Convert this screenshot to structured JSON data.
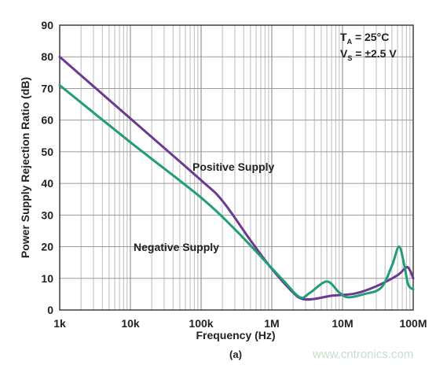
{
  "chart_data": {
    "type": "line",
    "title": "",
    "xlabel": "Frequency (Hz)",
    "ylabel": "Power Supply Rejection Ratio (dB)",
    "xscale": "log",
    "xlim": [
      1000,
      100000000
    ],
    "ylim": [
      0,
      90
    ],
    "x_ticks": [
      {
        "value": 1000,
        "label": "1k"
      },
      {
        "value": 10000,
        "label": "10k"
      },
      {
        "value": 100000,
        "label": "100k"
      },
      {
        "value": 1000000,
        "label": "1M"
      },
      {
        "value": 10000000,
        "label": "10M"
      },
      {
        "value": 100000000,
        "label": "100M"
      }
    ],
    "y_ticks": [
      0,
      10,
      20,
      30,
      40,
      50,
      60,
      70,
      80,
      90
    ],
    "grid": true,
    "conditions": {
      "line1": {
        "main": "T",
        "sub": "A",
        "rest": " = 25°C"
      },
      "line2": {
        "main": "V",
        "sub": "S",
        "rest": " = ±2.5 V"
      }
    },
    "series": [
      {
        "name": "Positive Supply",
        "color": "#6a3a8f",
        "points": [
          [
            1000,
            80
          ],
          [
            10000,
            60.5
          ],
          [
            100000,
            41
          ],
          [
            200000,
            34.5
          ],
          [
            500000,
            22
          ],
          [
            1000000,
            13
          ],
          [
            2000000,
            5.5
          ],
          [
            2700000,
            3.5
          ],
          [
            4000000,
            3.5
          ],
          [
            7000000,
            4.5
          ],
          [
            15000000,
            5.2
          ],
          [
            30000000,
            7.5
          ],
          [
            60000000,
            11
          ],
          [
            80000000,
            13.5
          ],
          [
            90000000,
            12.5
          ],
          [
            100000000,
            10
          ]
        ]
      },
      {
        "name": "Negative Supply",
        "color": "#1f9d78",
        "points": [
          [
            1000,
            71
          ],
          [
            10000,
            53
          ],
          [
            100000,
            35.5
          ],
          [
            300000,
            25.5
          ],
          [
            800000,
            15.5
          ],
          [
            1500000,
            9
          ],
          [
            2500000,
            4
          ],
          [
            3500000,
            5.5
          ],
          [
            6000000,
            9
          ],
          [
            9000000,
            5.5
          ],
          [
            12000000,
            4
          ],
          [
            20000000,
            5
          ],
          [
            35000000,
            7
          ],
          [
            50000000,
            14
          ],
          [
            63000000,
            20
          ],
          [
            75000000,
            14
          ],
          [
            85000000,
            8
          ],
          [
            100000000,
            6.5
          ]
        ]
      }
    ],
    "panel_label": "(a)"
  },
  "watermark": "www.cntronics.com"
}
